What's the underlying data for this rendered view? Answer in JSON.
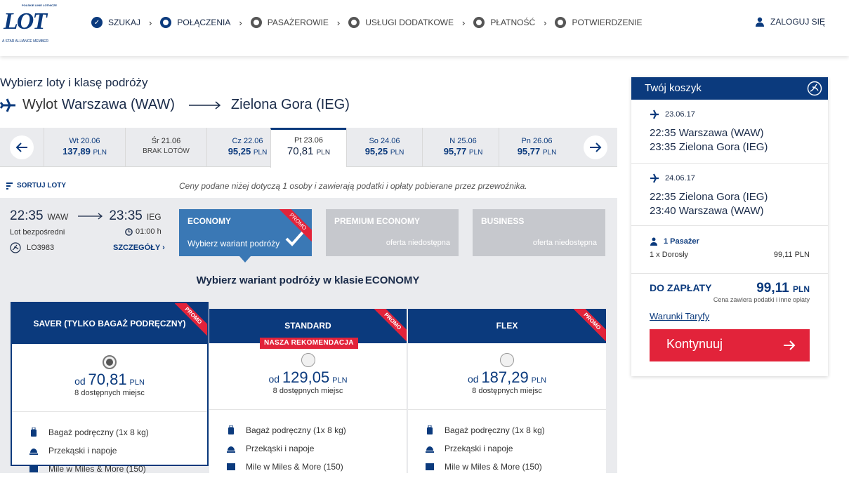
{
  "brand": {
    "tagline": "POLSKIE LINIE LOTNICZE",
    "name": "LOT",
    "alliance": "A STAR ALLIANCE MEMBER"
  },
  "steps": [
    {
      "label": "SZUKAJ",
      "state": "done"
    },
    {
      "label": "POŁĄCZENIA",
      "state": "current"
    },
    {
      "label": "PASAŻEROWIE",
      "state": "pending"
    },
    {
      "label": "USŁUGI DODATKOWE",
      "state": "pending"
    },
    {
      "label": "PŁATNOŚĆ",
      "state": "pending"
    },
    {
      "label": "POTWIERDZENIE",
      "state": "pending"
    }
  ],
  "login": "ZALOGUJ SIĘ",
  "page": {
    "title": "Wybierz loty i klasę podróży",
    "route_label": "Wylot",
    "origin": "Warszawa (WAW)",
    "destination": "Zielona Gora (IEG)"
  },
  "dates": [
    {
      "day": "Wt 20.06",
      "price": "137,89",
      "cur": "PLN"
    },
    {
      "day": "Śr 21.06",
      "none": "BRAK LOTÓW"
    },
    {
      "day": "Cz 22.06",
      "price": "95,25",
      "cur": "PLN"
    },
    {
      "day": "Pt 23.06",
      "price": "70,81",
      "cur": "PLN",
      "active": true
    },
    {
      "day": "So 24.06",
      "price": "95,25",
      "cur": "PLN"
    },
    {
      "day": "N 25.06",
      "price": "95,77",
      "cur": "PLN"
    },
    {
      "day": "Pn 26.06",
      "price": "95,77",
      "cur": "PLN"
    }
  ],
  "sort_label": "SORTUJ LOTY",
  "price_note": "Ceny podane niżej dotyczą 1 osoby i zawierają podatki i opłaty pobierane przez przewoźnika.",
  "flight": {
    "dep_time": "22:35",
    "dep_code": "WAW",
    "arr_time": "23:35",
    "arr_code": "IEG",
    "type": "Lot bezpośredni",
    "duration": "01:00 h",
    "number": "LO3983",
    "details": "SZCZEGÓŁY"
  },
  "classes": [
    {
      "name": "ECONOMY",
      "sub": "Wybierz wariant podróży",
      "promo": "PROMO"
    },
    {
      "name": "PREMIUM ECONOMY",
      "sub": "oferta niedostępna"
    },
    {
      "name": "BUSINESS",
      "sub": "oferta niedostępna"
    }
  ],
  "variant_title_prefix": "Wybierz wariant podróży w klasie",
  "variant_title_class": "ECONOMY",
  "variants": [
    {
      "name": "SAVER (TYLKO BAGAŻ PODRĘCZNY)",
      "promo": "PROMO",
      "from": "od",
      "price": "70,81",
      "cur": "PLN",
      "seats": "8 dostępnych miejsc",
      "selected": true
    },
    {
      "name": "STANDARD",
      "promo": "PROMO",
      "badge": "NASZA REKOMENDACJA",
      "from": "od",
      "price": "129,05",
      "cur": "PLN",
      "seats": "8 dostępnych miejsc"
    },
    {
      "name": "FLEX",
      "promo": "PROMO",
      "from": "od",
      "price": "187,29",
      "cur": "PLN",
      "seats": "8 dostępnych miejsc"
    }
  ],
  "features": [
    {
      "icon": "luggage-icon",
      "label": "Bagaż podręczny (1x 8 kg)"
    },
    {
      "icon": "meal-icon",
      "label": "Przekąski i napoje"
    },
    {
      "icon": "miles-icon",
      "label": "Mile w Miles & More (150)"
    }
  ],
  "cart": {
    "title": "Twój koszyk",
    "segments": [
      {
        "date": "23.06.17",
        "dep": "22:35 Warszawa (WAW)",
        "arr": "23:35 Zielona Gora (IEG)"
      },
      {
        "date": "24.06.17",
        "dep": "22:35 Zielona Gora (IEG)",
        "arr": "23:40 Warszawa (WAW)"
      }
    ],
    "pax": "1 Pasażer",
    "pax_type": "1 x Dorosły",
    "pax_price": "99,11 PLN",
    "total_label": "DO ZAPŁATY",
    "total": "99,11",
    "total_cur": "PLN",
    "tax_note": "Cena zawiera podatki i inne opłaty",
    "tariff": "Warunki Taryfy",
    "continue": "Kontynuuj"
  },
  "colors": {
    "navy": "#0b3a7d",
    "economy": "#3a78b5",
    "red": "#e2233a",
    "gray": "#eaebee"
  }
}
